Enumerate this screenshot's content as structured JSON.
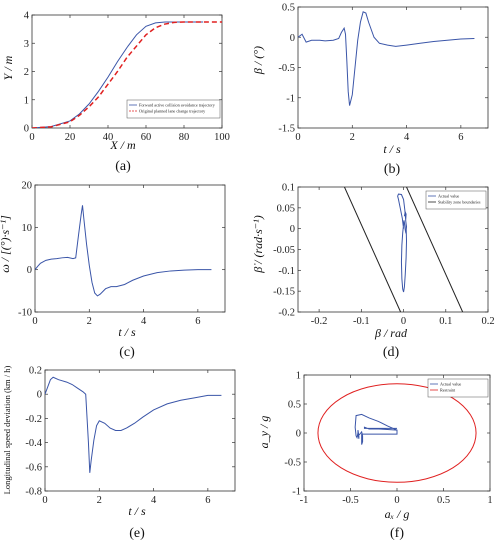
{
  "chart_data": [
    {
      "id": "a",
      "type": "line",
      "panel_label": "(a)",
      "xlabel": "X / m",
      "ylabel": "Y / m",
      "xlim": [
        0,
        100
      ],
      "ylim": [
        0,
        4
      ],
      "xticks": [
        0,
        20,
        40,
        60,
        80,
        100
      ],
      "yticks": [
        0,
        1,
        2,
        3,
        4
      ],
      "legend_position": "lower-right",
      "series": [
        {
          "name": "Forward active collision avoidance trajectory",
          "color": "#3a55a8",
          "style": "solid",
          "x": [
            0,
            10,
            20,
            25,
            30,
            35,
            40,
            45,
            50,
            55,
            60,
            65,
            70,
            75,
            80,
            85,
            90
          ],
          "y": [
            0,
            0.05,
            0.25,
            0.5,
            0.85,
            1.3,
            1.8,
            2.35,
            2.85,
            3.3,
            3.6,
            3.72,
            3.75,
            3.75,
            3.75,
            3.75,
            3.75
          ]
        },
        {
          "name": "Original planned lane change trajectory",
          "color": "#e02020",
          "style": "dashed",
          "x": [
            0,
            10,
            20,
            25,
            30,
            35,
            40,
            45,
            50,
            55,
            60,
            65,
            70,
            75,
            80,
            85,
            90,
            100
          ],
          "y": [
            0,
            0.04,
            0.22,
            0.45,
            0.75,
            1.1,
            1.55,
            2.0,
            2.5,
            2.9,
            3.3,
            3.55,
            3.68,
            3.74,
            3.75,
            3.75,
            3.75,
            3.75
          ]
        }
      ]
    },
    {
      "id": "b",
      "type": "line",
      "panel_label": "(b)",
      "xlabel": "t / s",
      "ylabel": "β / (°)",
      "xlim": [
        0,
        7
      ],
      "ylim": [
        -1.5,
        0.5
      ],
      "xticks": [
        0,
        2,
        4,
        6
      ],
      "yticks": [
        0.5,
        0,
        -0.5,
        -1,
        -1.5
      ],
      "series": [
        {
          "color": "#3a55a8",
          "x": [
            0,
            0.15,
            0.3,
            0.5,
            0.8,
            1.0,
            1.3,
            1.5,
            1.6,
            1.7,
            1.75,
            1.8,
            1.85,
            1.9,
            2.0,
            2.1,
            2.2,
            2.3,
            2.4,
            2.5,
            2.6,
            2.8,
            3.0,
            3.3,
            3.6,
            4.0,
            4.5,
            5.0,
            5.5,
            6.0,
            6.5
          ],
          "y": [
            0,
            0.05,
            -0.08,
            -0.05,
            -0.05,
            -0.06,
            -0.05,
            -0.02,
            0.08,
            0.15,
            0.05,
            -0.4,
            -0.9,
            -1.13,
            -0.95,
            -0.5,
            -0.05,
            0.25,
            0.42,
            0.4,
            0.25,
            0.0,
            -0.1,
            -0.13,
            -0.15,
            -0.13,
            -0.1,
            -0.07,
            -0.05,
            -0.03,
            -0.02
          ]
        }
      ]
    },
    {
      "id": "c",
      "type": "line",
      "panel_label": "(c)",
      "xlabel": "t / s",
      "ylabel": "ω / [(°)·s⁻¹]",
      "xlim": [
        0,
        7
      ],
      "ylim": [
        -10,
        20
      ],
      "xticks": [
        0,
        2,
        4,
        6
      ],
      "yticks": [
        20,
        10,
        0,
        -10
      ],
      "series": [
        {
          "color": "#3a55a8",
          "x": [
            0,
            0.1,
            0.2,
            0.4,
            0.6,
            0.8,
            1.0,
            1.2,
            1.4,
            1.5,
            1.6,
            1.7,
            1.75,
            1.8,
            1.9,
            2.0,
            2.1,
            2.2,
            2.3,
            2.4,
            2.6,
            2.8,
            3.0,
            3.3,
            3.6,
            4.0,
            4.5,
            5.0,
            5.5,
            6.0,
            6.5
          ],
          "y": [
            0,
            0.8,
            1.5,
            2.2,
            2.5,
            2.6,
            2.8,
            2.9,
            2.6,
            2.8,
            8,
            13,
            15.2,
            12,
            6,
            1,
            -3,
            -5.5,
            -6.2,
            -5.8,
            -4.5,
            -4,
            -4,
            -3.5,
            -2.5,
            -1.5,
            -0.7,
            -0.3,
            -0.1,
            0,
            0
          ]
        }
      ]
    },
    {
      "id": "d",
      "type": "line",
      "panel_label": "(d)",
      "xlabel": "β / rad",
      "ylabel": "β̇ / (rad·s⁻¹)",
      "xlim": [
        -0.25,
        0.2
      ],
      "ylim": [
        -0.2,
        0.1
      ],
      "xticks": [
        -0.2,
        -0.1,
        0,
        0.1,
        0.2
      ],
      "yticks": [
        0.1,
        0.05,
        0,
        -0.05,
        -0.1,
        -0.15,
        -0.2
      ],
      "legend_position": "top-right",
      "series": [
        {
          "name": "Actual value",
          "color": "#3a55a8",
          "x": [
            0.0,
            -0.003,
            -0.008,
            -0.012,
            -0.014,
            -0.012,
            -0.005,
            0.0,
            0.003,
            0.006,
            0.007,
            0.006,
            0.004,
            0.002,
            0.0,
            -0.002,
            -0.004,
            -0.005,
            -0.004,
            -0.002,
            0.0,
            0.001,
            0.002,
            0.003,
            0.004,
            0.005,
            0.006,
            0.007,
            0.006,
            0.005,
            0.006,
            0.004,
            0.002
          ],
          "y": [
            0.0,
            0.025,
            0.05,
            0.07,
            0.078,
            0.083,
            0.082,
            0.07,
            0.045,
            0.01,
            -0.03,
            -0.07,
            -0.11,
            -0.14,
            -0.152,
            -0.145,
            -0.12,
            -0.08,
            -0.04,
            -0.01,
            0.01,
            0.02,
            0.015,
            0.005,
            -0.003,
            -0.008,
            -0.005,
            0.005,
            0.012,
            0.02,
            0.035,
            0.04,
            0.03
          ]
        },
        {
          "name": "Stability zone boundaries",
          "color": "#222222",
          "x": [
            -0.14,
            -0.007
          ],
          "y": [
            0.1,
            -0.2
          ]
        },
        {
          "name": "",
          "color": "#222222",
          "x": [
            0.007,
            0.14
          ],
          "y": [
            0.1,
            -0.2
          ]
        }
      ]
    },
    {
      "id": "e",
      "type": "line",
      "panel_label": "(e)",
      "xlabel": "t / s",
      "ylabel": "Longitudinal speed deviation (km / h)",
      "xlim": [
        0,
        7
      ],
      "ylim": [
        -0.8,
        0.2
      ],
      "xticks": [
        0,
        2,
        4,
        6
      ],
      "yticks": [
        0.2,
        0,
        -0.2,
        -0.4,
        -0.6,
        -0.8
      ],
      "series": [
        {
          "color": "#3a55a8",
          "x": [
            0,
            0.1,
            0.2,
            0.3,
            0.5,
            0.8,
            1.0,
            1.2,
            1.4,
            1.5,
            1.55,
            1.6,
            1.65,
            1.7,
            1.8,
            1.9,
            2.0,
            2.2,
            2.4,
            2.6,
            2.8,
            3.0,
            3.3,
            3.6,
            4.0,
            4.5,
            5.0,
            5.5,
            6.0,
            6.5
          ],
          "y": [
            0,
            0.06,
            0.12,
            0.14,
            0.12,
            0.1,
            0.08,
            0.05,
            0.02,
            0.0,
            -0.2,
            -0.4,
            -0.65,
            -0.55,
            -0.38,
            -0.26,
            -0.22,
            -0.24,
            -0.28,
            -0.3,
            -0.3,
            -0.28,
            -0.24,
            -0.19,
            -0.13,
            -0.08,
            -0.05,
            -0.03,
            -0.01,
            -0.01
          ]
        }
      ]
    },
    {
      "id": "f",
      "type": "line",
      "panel_label": "(f)",
      "xlabel": "aₓ / g",
      "ylabel": "a_y / g",
      "xlim": [
        -1,
        1
      ],
      "ylim": [
        -1,
        1
      ],
      "xticks": [
        -1,
        -0.5,
        0,
        0.5,
        1
      ],
      "yticks": [
        1,
        0.5,
        0,
        -0.5,
        -1
      ],
      "legend_position": "top-right",
      "series": [
        {
          "name": "Actual value",
          "color": "#3a55a8",
          "x": [
            0.0,
            -0.1,
            -0.2,
            -0.3,
            -0.38,
            -0.44,
            -0.45,
            -0.44,
            -0.43,
            -0.42,
            -0.41,
            -0.41,
            -0.42,
            -0.42,
            -0.4,
            -0.38,
            -0.37,
            -0.37,
            -0.38,
            -0.38,
            -0.2,
            0.0,
            0.0,
            -0.1,
            -0.2,
            -0.3,
            -0.35,
            -0.35,
            -0.1,
            0.0
          ],
          "y": [
            0.05,
            0.12,
            0.2,
            0.26,
            0.32,
            0.3,
            0.1,
            -0.05,
            -0.08,
            0.0,
            -0.1,
            -0.05,
            0.05,
            -0.05,
            -0.02,
            0.02,
            -0.05,
            -0.15,
            -0.2,
            -0.02,
            -0.02,
            -0.02,
            0.05,
            0.06,
            0.07,
            0.07,
            0.1,
            0.08,
            0.08,
            0.08
          ]
        },
        {
          "name": "Restraint",
          "color": "#e02020",
          "shape": "ellipse",
          "cx": 0,
          "cy": 0,
          "rx": 0.85,
          "ry": 0.85
        }
      ]
    }
  ]
}
